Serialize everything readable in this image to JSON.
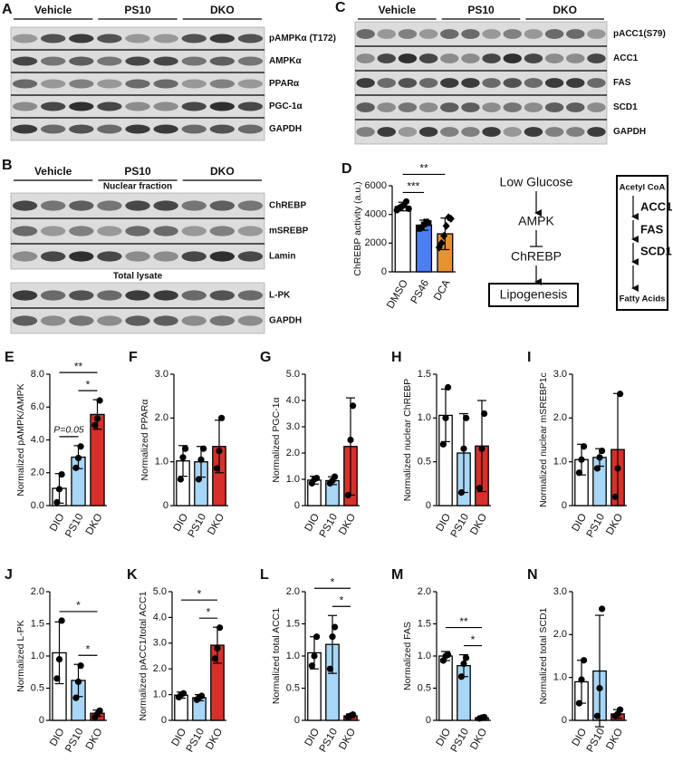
{
  "blots": [
    {
      "panel": "A",
      "groups": [
        "Vehicle",
        "PS10",
        "DKO"
      ],
      "rows": [
        "pAMPKα (T172)",
        "AMPKα",
        "PPARα",
        "PGC-1α",
        "GAPDH"
      ]
    },
    {
      "panel": "B",
      "groups": [
        "Vehicle",
        "PS10",
        "DKO"
      ],
      "sections": [
        {
          "title": "Nuclear fraction",
          "rows": [
            "ChREBP",
            "mSREBP",
            "Lamin"
          ]
        },
        {
          "title": "Total lysate",
          "rows": [
            "L-PK",
            "GAPDH"
          ]
        }
      ]
    },
    {
      "panel": "C",
      "groups": [
        "Vehicle",
        "PS10",
        "DKO"
      ],
      "rows": [
        "pACC1(S79)",
        "ACC1",
        "FAS",
        "SCD1",
        "GAPDH"
      ]
    }
  ],
  "pathway": {
    "steps": [
      "Low Glucose",
      "AMPK",
      "ChREBP",
      "Lipogenesis"
    ]
  },
  "enzymes": {
    "steps": [
      "Acetyl CoA",
      "ACC1",
      "FAS",
      "SCD1",
      "Fatty Acids"
    ]
  },
  "chart_data": [
    {
      "panel": "D",
      "type": "bar",
      "ylabel": "ChREBP activity (a.u.)",
      "categories": [
        "DMSO",
        "PS46",
        "DCA"
      ],
      "values": [
        4550,
        3250,
        2650
      ],
      "errors": [
        300,
        350,
        1100
      ],
      "colors": [
        "#ffffff",
        "#4b7ff2",
        "#e8922e"
      ],
      "markers": [
        "circle",
        "square",
        "diamond"
      ],
      "points": [
        [
          4300,
          4450,
          4550,
          4650,
          4900,
          4400
        ],
        [
          3000,
          3100,
          3300,
          3500,
          3400
        ],
        [
          1700,
          2000,
          2500,
          3200,
          3800,
          3700
        ]
      ],
      "ylim": [
        0,
        6000
      ],
      "yticks": [
        0,
        2000,
        4000,
        6000
      ],
      "significance": [
        {
          "between": [
            "DMSO",
            "PS46"
          ],
          "label": "***"
        },
        {
          "between": [
            "DMSO",
            "DCA"
          ],
          "label": "**"
        }
      ]
    },
    {
      "panel": "E",
      "type": "bar",
      "ylabel": "Normalized pAMPK/AMPK",
      "categories": [
        "DIO",
        "PS10",
        "DKO"
      ],
      "values": [
        1.05,
        2.95,
        5.55
      ],
      "errors": [
        0.9,
        0.7,
        0.9
      ],
      "colors": [
        "#ffffff",
        "#a8d6f7",
        "#d7302a"
      ],
      "points": [
        [
          0.2,
          1.0,
          1.9
        ],
        [
          2.3,
          2.9,
          3.6
        ],
        [
          4.9,
          5.3,
          6.4
        ]
      ],
      "ylim": [
        0,
        8
      ],
      "yticks": [
        {
          "value": 0,
          "label": "0.0"
        },
        {
          "value": 2,
          "label": "2.0"
        },
        {
          "value": 4,
          "label": "4.0"
        },
        {
          "value": 6,
          "label": "6.0"
        },
        {
          "value": 8,
          "label": "8.0"
        }
      ],
      "significance": [
        {
          "between": [
            "DIO",
            "PS10"
          ],
          "label": "P=0.05"
        },
        {
          "between": [
            "PS10",
            "DKO"
          ],
          "label": "*"
        },
        {
          "between": [
            "DIO",
            "DKO"
          ],
          "label": "**"
        }
      ]
    },
    {
      "panel": "F",
      "type": "bar",
      "ylabel": "Normalized PPARα",
      "categories": [
        "DIO",
        "PS10",
        "DKO"
      ],
      "values": [
        1.02,
        1.0,
        1.35
      ],
      "errors": [
        0.35,
        0.35,
        0.6
      ],
      "colors": [
        "#ffffff",
        "#a8d6f7",
        "#d7302a"
      ],
      "points": [
        [
          0.6,
          1.1,
          1.3
        ],
        [
          0.6,
          1.05,
          1.3
        ],
        [
          0.85,
          1.25,
          2.0
        ]
      ],
      "ylim": [
        0,
        3
      ],
      "yticks": [
        0,
        {
          "value": 1,
          "label": "1.0"
        },
        {
          "value": 2,
          "label": "2.0"
        },
        {
          "value": 3,
          "label": "3.0"
        }
      ]
    },
    {
      "panel": "G",
      "type": "bar",
      "ylabel": "Normalized PGC-1α",
      "categories": [
        "DIO",
        "PS10",
        "DKO"
      ],
      "values": [
        0.97,
        0.95,
        2.25
      ],
      "errors": [
        0.15,
        0.15,
        1.85
      ],
      "colors": [
        "#ffffff",
        "#a8d6f7",
        "#d7302a"
      ],
      "points": [
        [
          0.85,
          1.0,
          1.05
        ],
        [
          0.85,
          0.95,
          1.1
        ],
        [
          0.4,
          2.5,
          3.8
        ]
      ],
      "ylim": [
        0,
        5
      ],
      "yticks": [
        0,
        {
          "value": 1,
          "label": "1.0"
        },
        {
          "value": 2,
          "label": "2.0"
        },
        {
          "value": 3,
          "label": "3.0"
        },
        {
          "value": 4,
          "label": "4.0"
        },
        {
          "value": 5,
          "label": "5.0"
        }
      ]
    },
    {
      "panel": "H",
      "type": "bar",
      "ylabel": "Normalized  nuclear ChREBP",
      "categories": [
        "DIO",
        "PS10",
        "DKO"
      ],
      "values": [
        1.03,
        0.6,
        0.68
      ],
      "errors": [
        0.3,
        0.45,
        0.52
      ],
      "colors": [
        "#ffffff",
        "#a8d6f7",
        "#d7302a"
      ],
      "points": [
        [
          0.7,
          1.0,
          1.35
        ],
        [
          0.15,
          0.65,
          1.0
        ],
        [
          0.2,
          0.65,
          1.05
        ]
      ],
      "ylim": [
        0,
        1.5
      ],
      "yticks": [
        0,
        0.5,
        {
          "value": 1,
          "label": "1.0"
        },
        1.5
      ]
    },
    {
      "panel": "I",
      "type": "bar",
      "ylabel": "Normalized  nuclear mSREBP1c",
      "categories": [
        "DIO",
        "PS10",
        "DKO"
      ],
      "values": [
        1.05,
        1.1,
        1.28
      ],
      "errors": [
        0.35,
        0.2,
        1.28
      ],
      "colors": [
        "#ffffff",
        "#a8d6f7",
        "#d7302a"
      ],
      "points": [
        [
          0.75,
          1.05,
          1.35
        ],
        [
          0.85,
          1.1,
          1.25
        ],
        [
          0.2,
          0.85,
          2.55
        ]
      ],
      "ylim": [
        0,
        3
      ],
      "yticks": [
        0,
        {
          "value": 1,
          "label": "1.0"
        },
        {
          "value": 2,
          "label": "2.0"
        },
        {
          "value": 3,
          "label": "3.0"
        }
      ]
    },
    {
      "panel": "J",
      "type": "bar",
      "ylabel": "Normalized L-PK",
      "categories": [
        "DIO",
        "PS10",
        "DKO"
      ],
      "values": [
        1.05,
        0.62,
        0.11
      ],
      "errors": [
        0.48,
        0.25,
        0.05
      ],
      "colors": [
        "#ffffff",
        "#a8d6f7",
        "#d7302a"
      ],
      "points": [
        [
          0.65,
          0.95,
          1.55
        ],
        [
          0.35,
          0.6,
          0.85
        ],
        [
          0.05,
          0.1,
          0.15
        ]
      ],
      "ylim": [
        0,
        2
      ],
      "yticks": [
        0,
        0.5,
        {
          "value": 1,
          "label": "1.0"
        },
        1.5,
        {
          "value": 2,
          "label": "2.0"
        }
      ],
      "significance": [
        {
          "between": [
            "PS10",
            "DKO"
          ],
          "label": "*"
        },
        {
          "between": [
            "DIO",
            "DKO"
          ],
          "label": "*"
        }
      ]
    },
    {
      "panel": "K",
      "type": "bar",
      "ylabel": "Normalized pACC1/total ACC1",
      "categories": [
        "DIO",
        "PS10",
        "DKO"
      ],
      "values": [
        0.98,
        0.88,
        2.92
      ],
      "errors": [
        0.12,
        0.12,
        0.7
      ],
      "colors": [
        "#ffffff",
        "#a8d6f7",
        "#d7302a"
      ],
      "points": [
        [
          0.9,
          1.0,
          1.05
        ],
        [
          0.8,
          0.9,
          0.95
        ],
        [
          2.4,
          2.8,
          3.6
        ]
      ],
      "ylim": [
        0,
        5
      ],
      "yticks": [
        0,
        {
          "value": 1,
          "label": "1.0"
        },
        {
          "value": 2,
          "label": "2.0"
        },
        {
          "value": 3,
          "label": "3.0"
        },
        {
          "value": 4,
          "label": "4.0"
        },
        {
          "value": 5,
          "label": "5.0"
        }
      ],
      "significance": [
        {
          "between": [
            "PS10",
            "DKO"
          ],
          "label": "*"
        },
        {
          "between": [
            "DIO",
            "DKO"
          ],
          "label": "*"
        }
      ]
    },
    {
      "panel": "L",
      "type": "bar",
      "ylabel": "Normalized total ACC1",
      "categories": [
        "DIO",
        "PS10",
        "DKO"
      ],
      "values": [
        1.05,
        1.18,
        0.07
      ],
      "errors": [
        0.25,
        0.45,
        0.03
      ],
      "colors": [
        "#ffffff",
        "#a8d6f7",
        "#d7302a"
      ],
      "points": [
        [
          0.85,
          1.0,
          1.3
        ],
        [
          0.8,
          1.3,
          1.45
        ],
        [
          0.05,
          0.07,
          0.09
        ]
      ],
      "ylim": [
        0,
        2
      ],
      "yticks": [
        0,
        0.5,
        {
          "value": 1,
          "label": "1.0"
        },
        1.5,
        {
          "value": 2,
          "label": "2.0"
        }
      ],
      "significance": [
        {
          "between": [
            "PS10",
            "DKO"
          ],
          "label": "*"
        },
        {
          "between": [
            "DIO",
            "DKO"
          ],
          "label": "*"
        }
      ]
    },
    {
      "panel": "M",
      "type": "bar",
      "ylabel": "Normalized FAS",
      "categories": [
        "DIO",
        "PS10",
        "DKO"
      ],
      "values": [
        1.0,
        0.85,
        0.04
      ],
      "errors": [
        0.07,
        0.17,
        0.02
      ],
      "colors": [
        "#ffffff",
        "#a8d6f7",
        "#d7302a"
      ],
      "points": [
        [
          0.93,
          1.0,
          1.02
        ],
        [
          0.68,
          0.88,
          0.97
        ],
        [
          0.03,
          0.04,
          0.05
        ]
      ],
      "ylim": [
        0,
        2
      ],
      "yticks": [
        0,
        0.5,
        {
          "value": 1,
          "label": "1.0"
        },
        1.5,
        {
          "value": 2,
          "label": "2.0"
        }
      ],
      "significance": [
        {
          "between": [
            "PS10",
            "DKO"
          ],
          "label": "*"
        },
        {
          "between": [
            "DIO",
            "DKO"
          ],
          "label": "**"
        }
      ]
    },
    {
      "panel": "N",
      "type": "bar",
      "ylabel": "Normalized total SCD1",
      "categories": [
        "DIO",
        "PS10",
        "DKO"
      ],
      "values": [
        0.9,
        1.15,
        0.15
      ],
      "errors": [
        0.5,
        1.3,
        0.1
      ],
      "colors": [
        "#ffffff",
        "#a8d6f7",
        "#d7302a"
      ],
      "points": [
        [
          0.4,
          0.95,
          1.4
        ],
        [
          0.1,
          0.75,
          2.6
        ],
        [
          0.1,
          0.15,
          0.25
        ]
      ],
      "ylim": [
        0,
        3
      ],
      "yticks": [
        0,
        {
          "value": 1,
          "label": "1.0"
        },
        {
          "value": 2,
          "label": "2.0"
        },
        {
          "value": 3,
          "label": "3.0"
        }
      ]
    }
  ]
}
